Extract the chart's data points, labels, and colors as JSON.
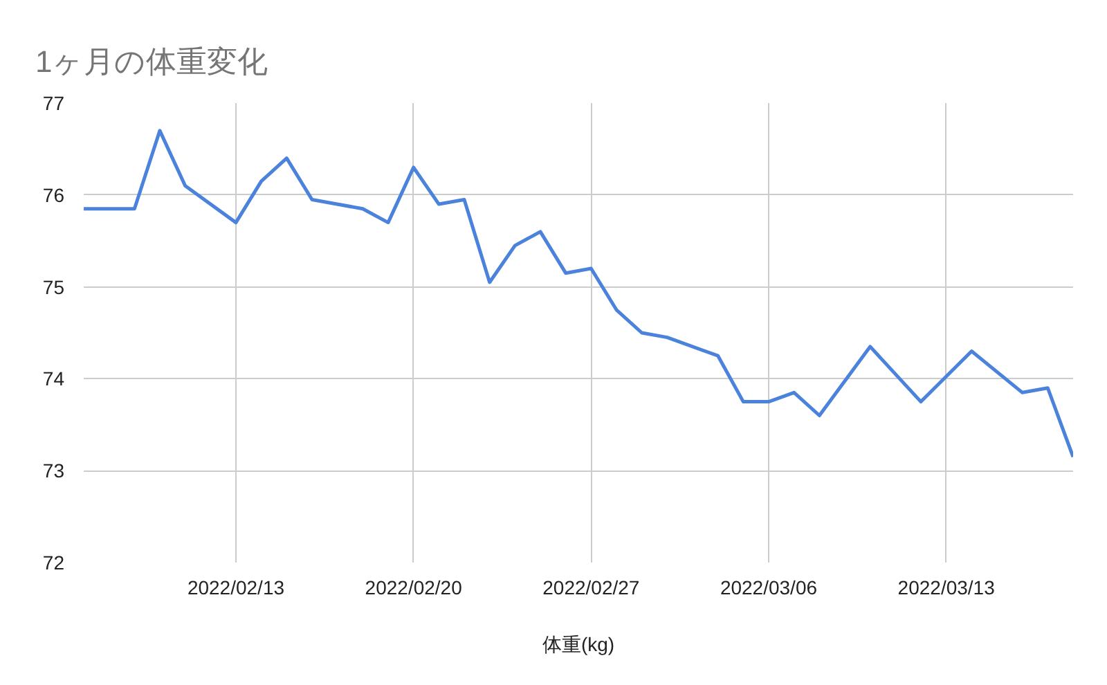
{
  "chart_data": {
    "type": "line",
    "title": "1ヶ月の体重変化",
    "xlabel": "体重(kg)",
    "x": [
      "2022-02-07",
      "2022-02-09",
      "2022-02-10",
      "2022-02-11",
      "2022-02-13",
      "2022-02-14",
      "2022-02-15",
      "2022-02-16",
      "2022-02-18",
      "2022-02-19",
      "2022-02-20",
      "2022-02-21",
      "2022-02-22",
      "2022-02-23",
      "2022-02-24",
      "2022-02-25",
      "2022-02-26",
      "2022-02-27",
      "2022-02-28",
      "2022-03-01",
      "2022-03-02",
      "2022-03-04",
      "2022-03-05",
      "2022-03-06",
      "2022-03-07",
      "2022-03-08",
      "2022-03-10",
      "2022-03-12",
      "2022-03-14",
      "2022-03-16",
      "2022-03-17",
      "2022-03-18"
    ],
    "series": [
      {
        "color": "#4a82dc",
        "values": [
          75.85,
          75.85,
          76.7,
          76.1,
          75.7,
          76.15,
          76.4,
          75.95,
          75.85,
          75.7,
          76.3,
          75.9,
          75.95,
          75.05,
          75.45,
          75.6,
          75.15,
          75.2,
          74.75,
          74.5,
          74.45,
          74.25,
          73.75,
          73.75,
          73.85,
          73.6,
          74.35,
          73.75,
          74.3,
          73.85,
          73.9,
          73.15
        ]
      }
    ],
    "xlim": [
      "2022-02-07",
      "2022-03-18"
    ],
    "xticks": [
      {
        "value": "2022-02-13",
        "label": "2022/02/13"
      },
      {
        "value": "2022-02-20",
        "label": "2022/02/20"
      },
      {
        "value": "2022-02-27",
        "label": "2022/02/27"
      },
      {
        "value": "2022-03-06",
        "label": "2022/03/06"
      },
      {
        "value": "2022-03-13",
        "label": "2022/03/13"
      }
    ],
    "ylim": [
      72,
      77
    ],
    "yticks": [
      72,
      73,
      74,
      75,
      76,
      77
    ],
    "grid": true,
    "line_style": "solid"
  }
}
